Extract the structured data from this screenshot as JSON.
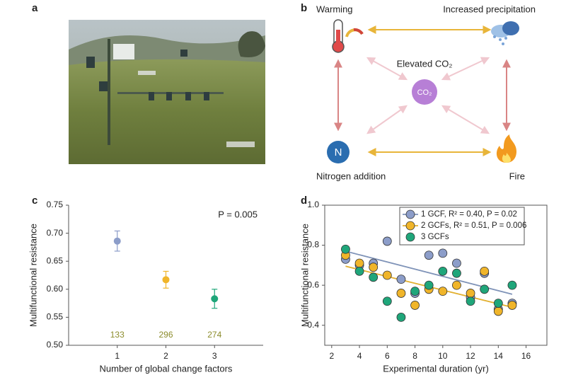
{
  "panel_labels": [
    "a",
    "b",
    "c",
    "d"
  ],
  "diagram": {
    "nodes": [
      {
        "label": "Warming"
      },
      {
        "label": "Increased precipitation"
      },
      {
        "label": "Elevated CO₂"
      },
      {
        "label": "Nitrogen addition"
      },
      {
        "label": "Fire"
      }
    ],
    "icons": {
      "co2": "CO₂",
      "nitrogen": "N"
    }
  },
  "chart_data": [
    {
      "type": "scatter",
      "x": [
        1,
        2,
        3
      ],
      "values": [
        0.686,
        0.617,
        0.583
      ],
      "errors": [
        0.018,
        0.015,
        0.017
      ],
      "colors": [
        "#8c9dc9",
        "#f0b52a",
        "#1fa67a"
      ],
      "counts": [
        133,
        296,
        274
      ],
      "count_color": "#8c8c2c",
      "annotation": "P = 0.005",
      "xlabel": "Number of global change factors",
      "ylabel": "Multifunctional resistance",
      "xlim": [
        0,
        4
      ],
      "xticks": [
        1,
        2,
        3
      ],
      "ylim": [
        0.5,
        0.75
      ],
      "yticks": [
        {
          "value": 0.5,
          "label": "0.50"
        },
        0.55,
        {
          "value": 0.6,
          "label": "0.60"
        },
        0.65,
        {
          "value": 0.7,
          "label": "0.70"
        },
        0.75
      ],
      "box": false
    },
    {
      "type": "scatter",
      "x": [
        3,
        4,
        5,
        6,
        7,
        8,
        9,
        10,
        11,
        12,
        13,
        14,
        15
      ],
      "fit_x": [
        3,
        15
      ],
      "series": [
        {
          "name": "1 GCF, R² = 0.40, P = 0.02",
          "color": "#8c9dc9",
          "line_color": "#7f93b8",
          "values": [
            0.73,
            0.7,
            0.71,
            0.82,
            0.63,
            0.56,
            0.75,
            0.76,
            0.71,
            0.54,
            0.66,
            0.48,
            0.51
          ],
          "fit": [
            0.77,
            0.555
          ]
        },
        {
          "name": "2 GCFs, R² = 0.51, P = 0.006",
          "color": "#f0b52a",
          "line_color": "#e2b030",
          "values": [
            0.75,
            0.71,
            0.69,
            0.65,
            0.56,
            0.5,
            0.58,
            0.57,
            0.6,
            0.56,
            0.67,
            0.47,
            0.5
          ],
          "fit": [
            0.695,
            0.49
          ]
        },
        {
          "name": "3 GCFs",
          "color": "#1fa67a",
          "values": [
            0.78,
            0.67,
            0.64,
            0.52,
            0.44,
            0.57,
            0.6,
            0.67,
            0.66,
            0.52,
            0.58,
            0.51,
            0.6
          ]
        }
      ],
      "xlabel": "Experimental duration (yr)",
      "ylabel": "Multifunctional resistance",
      "xlim": [
        1.5,
        17.5
      ],
      "xticks": [
        2,
        4,
        6,
        8,
        10,
        12,
        14,
        16
      ],
      "ylim": [
        0.3,
        1.0
      ],
      "yticks": [
        0.4,
        0.6,
        0.8,
        {
          "value": 1.0,
          "label": "1.0"
        }
      ],
      "box": true
    }
  ]
}
